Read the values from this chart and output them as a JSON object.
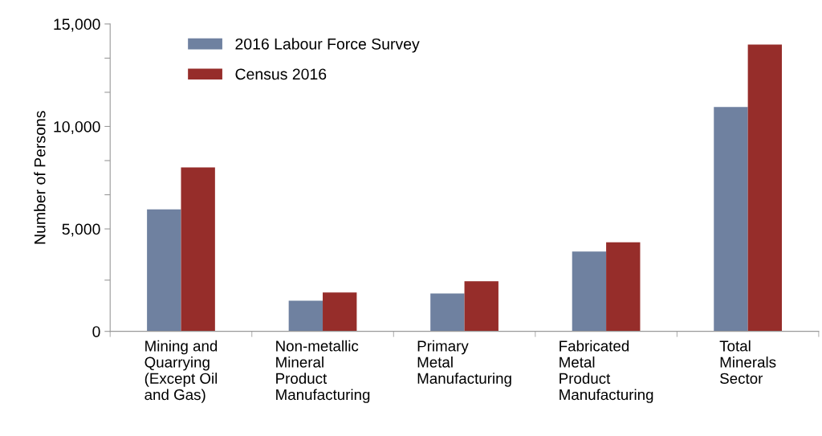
{
  "chart_data": {
    "type": "bar",
    "ylabel": "Number of Persons",
    "categories": [
      "Mining and\nQuarrying\n(Except Oil\nand Gas)",
      "Non-metallic\nMineral\nProduct\nManufacturing",
      "Primary\nMetal\nManufacturing",
      "Fabricated\nMetal\nProduct\nManufacturing",
      "Total\nMinerals\nSector"
    ],
    "series": [
      {
        "name": "2016 Labour Force Survey",
        "color": "#6f81a0",
        "values": [
          5950,
          1500,
          1850,
          3900,
          10950
        ]
      },
      {
        "name": "Census 2016",
        "color": "#962d2a",
        "values": [
          8000,
          1900,
          2450,
          4350,
          14000
        ]
      }
    ],
    "ylim": [
      0,
      15000
    ],
    "yticks": [
      {
        "value": 0,
        "label": "0"
      },
      {
        "value": 2500,
        "label": null
      },
      {
        "value": 5000,
        "label": "5,000"
      },
      {
        "value": 6667,
        "label": null
      },
      {
        "value": 8333,
        "label": null
      },
      {
        "value": 10000,
        "label": "10,000"
      },
      {
        "value": 11667,
        "label": null
      },
      {
        "value": 13333,
        "label": null
      },
      {
        "value": 15000,
        "label": "15,000"
      }
    ],
    "grid": false,
    "legend": "top left"
  }
}
